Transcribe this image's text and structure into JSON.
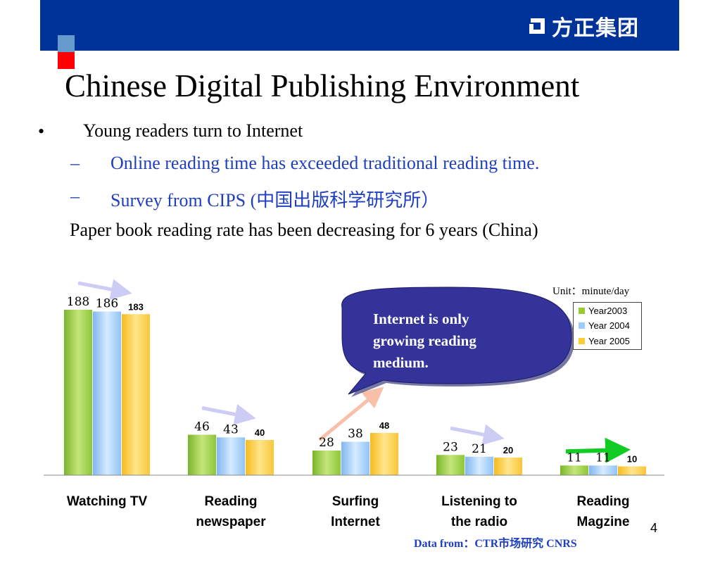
{
  "header": {
    "logo_text": "方正集团",
    "logo_icon": "founder-logo-icon"
  },
  "slide": {
    "title": "Chinese Digital Publishing Environment",
    "bullet_symbol": "•",
    "dash_symbol": "–",
    "bullet1": "Young readers turn to Internet",
    "sub1": "Online reading time has exceeded traditional reading time.",
    "sub2": "Survey from  CIPS (中国出版科学研究所）",
    "para": "Paper book reading rate has been decreasing for 6 years (China)",
    "unit": "Unit：minute/day",
    "callout": "Internet is only growing reading medium.",
    "source": "Data from：CTR市场研究 CNRS",
    "page_number": "4"
  },
  "colors": {
    "bar_2003": "#99cc33",
    "bar_2004": "#99ccff",
    "bar_2005": "#ffcc33",
    "header": "#003399",
    "callout": "#333399"
  },
  "chart_data": {
    "type": "bar",
    "categories": [
      "Watching TV",
      "Reading newspaper",
      "Surfing Internet",
      "Listening to the radio",
      "Reading Magzine"
    ],
    "series": [
      {
        "name": "Year2003",
        "values": [
          188,
          46,
          28,
          23,
          11
        ]
      },
      {
        "name": "Year 2004",
        "values": [
          186,
          43,
          38,
          21,
          11
        ]
      },
      {
        "name": "Year 2005",
        "values": [
          183,
          40,
          48,
          20,
          10
        ]
      }
    ],
    "ylim": [
      0,
      188
    ],
    "grid": false,
    "legend_position": "top-right",
    "trend_arrows": [
      "down",
      "down",
      "up",
      "down",
      "flat"
    ]
  }
}
